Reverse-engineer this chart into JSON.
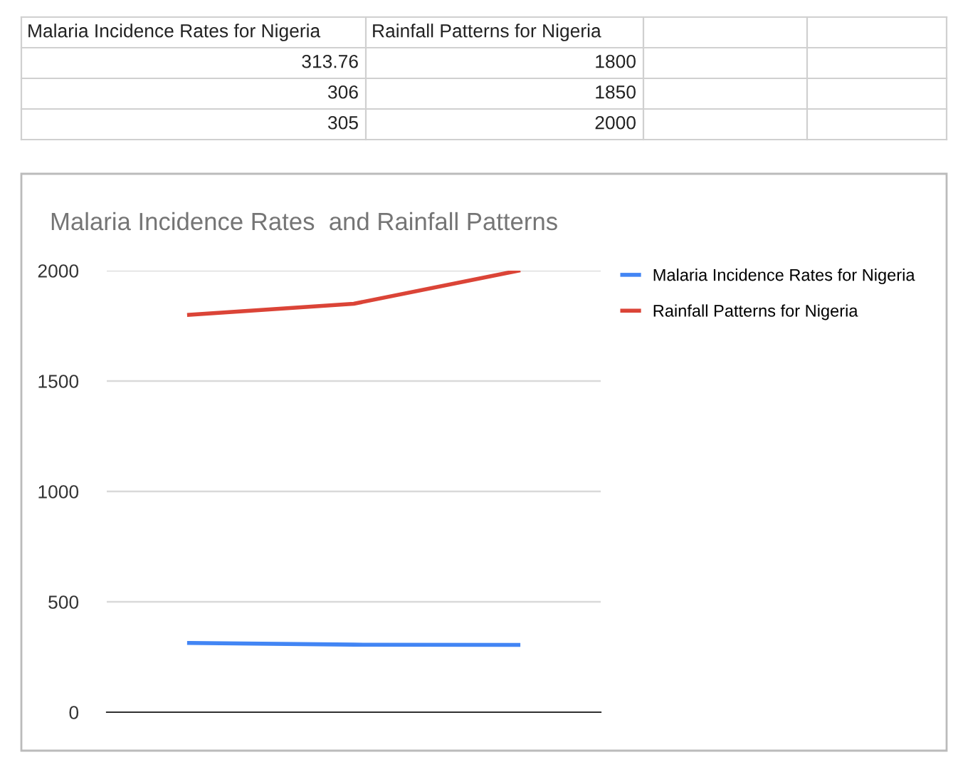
{
  "chart_data": {
    "type": "line",
    "title": "Malaria Incidence Rates  and Rainfall Patterns",
    "categories": [
      null,
      null,
      null
    ],
    "series": [
      {
        "name": "Malaria Incidence Rates for Nigeria",
        "color": "#4285f4",
        "values": [
          313.76,
          306,
          305
        ]
      },
      {
        "name": "Rainfall Patterns for Nigeria",
        "color": "#db4437",
        "values": [
          1800,
          1850,
          2000
        ]
      }
    ],
    "ylim": [
      0,
      2000
    ],
    "yticks": [
      0,
      500,
      1000,
      1500,
      2000
    ],
    "grid": "y",
    "legend": "top right",
    "marker": "none",
    "line_style": "solid",
    "annotations": [
      "Malaria Incidence Rates for Nigeria",
      "Rainfall Patterns for Nigeria",
      "313.76",
      "1800",
      "306",
      "1850",
      "305",
      "2000"
    ]
  }
}
